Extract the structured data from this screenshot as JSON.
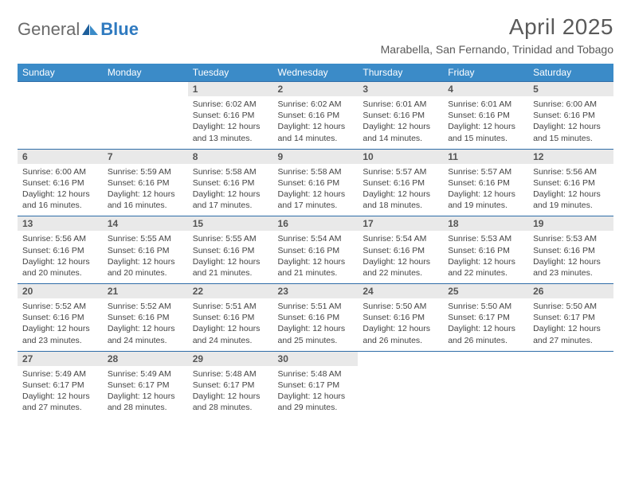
{
  "brand": {
    "part1": "General",
    "part2": "Blue"
  },
  "title": "April 2025",
  "location": "Marabella, San Fernando, Trinidad and Tobago",
  "colors": {
    "header_bg": "#3b8bc8",
    "header_text": "#ffffff",
    "daynum_bg": "#e9e9e9",
    "border_top": "#2f6da8",
    "body_text": "#444444",
    "title_text": "#5a5a5a",
    "logo_gray": "#6a6a6a",
    "logo_blue": "#2f7ac0"
  },
  "weekdays": [
    "Sunday",
    "Monday",
    "Tuesday",
    "Wednesday",
    "Thursday",
    "Friday",
    "Saturday"
  ],
  "weeks": [
    {
      "nums": [
        "",
        "",
        "1",
        "2",
        "3",
        "4",
        "5"
      ],
      "info": [
        null,
        null,
        {
          "sunrise": "Sunrise: 6:02 AM",
          "sunset": "Sunset: 6:16 PM",
          "day1": "Daylight: 12 hours",
          "day2": "and 13 minutes."
        },
        {
          "sunrise": "Sunrise: 6:02 AM",
          "sunset": "Sunset: 6:16 PM",
          "day1": "Daylight: 12 hours",
          "day2": "and 14 minutes."
        },
        {
          "sunrise": "Sunrise: 6:01 AM",
          "sunset": "Sunset: 6:16 PM",
          "day1": "Daylight: 12 hours",
          "day2": "and 14 minutes."
        },
        {
          "sunrise": "Sunrise: 6:01 AM",
          "sunset": "Sunset: 6:16 PM",
          "day1": "Daylight: 12 hours",
          "day2": "and 15 minutes."
        },
        {
          "sunrise": "Sunrise: 6:00 AM",
          "sunset": "Sunset: 6:16 PM",
          "day1": "Daylight: 12 hours",
          "day2": "and 15 minutes."
        }
      ]
    },
    {
      "nums": [
        "6",
        "7",
        "8",
        "9",
        "10",
        "11",
        "12"
      ],
      "info": [
        {
          "sunrise": "Sunrise: 6:00 AM",
          "sunset": "Sunset: 6:16 PM",
          "day1": "Daylight: 12 hours",
          "day2": "and 16 minutes."
        },
        {
          "sunrise": "Sunrise: 5:59 AM",
          "sunset": "Sunset: 6:16 PM",
          "day1": "Daylight: 12 hours",
          "day2": "and 16 minutes."
        },
        {
          "sunrise": "Sunrise: 5:58 AM",
          "sunset": "Sunset: 6:16 PM",
          "day1": "Daylight: 12 hours",
          "day2": "and 17 minutes."
        },
        {
          "sunrise": "Sunrise: 5:58 AM",
          "sunset": "Sunset: 6:16 PM",
          "day1": "Daylight: 12 hours",
          "day2": "and 17 minutes."
        },
        {
          "sunrise": "Sunrise: 5:57 AM",
          "sunset": "Sunset: 6:16 PM",
          "day1": "Daylight: 12 hours",
          "day2": "and 18 minutes."
        },
        {
          "sunrise": "Sunrise: 5:57 AM",
          "sunset": "Sunset: 6:16 PM",
          "day1": "Daylight: 12 hours",
          "day2": "and 19 minutes."
        },
        {
          "sunrise": "Sunrise: 5:56 AM",
          "sunset": "Sunset: 6:16 PM",
          "day1": "Daylight: 12 hours",
          "day2": "and 19 minutes."
        }
      ]
    },
    {
      "nums": [
        "13",
        "14",
        "15",
        "16",
        "17",
        "18",
        "19"
      ],
      "info": [
        {
          "sunrise": "Sunrise: 5:56 AM",
          "sunset": "Sunset: 6:16 PM",
          "day1": "Daylight: 12 hours",
          "day2": "and 20 minutes."
        },
        {
          "sunrise": "Sunrise: 5:55 AM",
          "sunset": "Sunset: 6:16 PM",
          "day1": "Daylight: 12 hours",
          "day2": "and 20 minutes."
        },
        {
          "sunrise": "Sunrise: 5:55 AM",
          "sunset": "Sunset: 6:16 PM",
          "day1": "Daylight: 12 hours",
          "day2": "and 21 minutes."
        },
        {
          "sunrise": "Sunrise: 5:54 AM",
          "sunset": "Sunset: 6:16 PM",
          "day1": "Daylight: 12 hours",
          "day2": "and 21 minutes."
        },
        {
          "sunrise": "Sunrise: 5:54 AM",
          "sunset": "Sunset: 6:16 PM",
          "day1": "Daylight: 12 hours",
          "day2": "and 22 minutes."
        },
        {
          "sunrise": "Sunrise: 5:53 AM",
          "sunset": "Sunset: 6:16 PM",
          "day1": "Daylight: 12 hours",
          "day2": "and 22 minutes."
        },
        {
          "sunrise": "Sunrise: 5:53 AM",
          "sunset": "Sunset: 6:16 PM",
          "day1": "Daylight: 12 hours",
          "day2": "and 23 minutes."
        }
      ]
    },
    {
      "nums": [
        "20",
        "21",
        "22",
        "23",
        "24",
        "25",
        "26"
      ],
      "info": [
        {
          "sunrise": "Sunrise: 5:52 AM",
          "sunset": "Sunset: 6:16 PM",
          "day1": "Daylight: 12 hours",
          "day2": "and 23 minutes."
        },
        {
          "sunrise": "Sunrise: 5:52 AM",
          "sunset": "Sunset: 6:16 PM",
          "day1": "Daylight: 12 hours",
          "day2": "and 24 minutes."
        },
        {
          "sunrise": "Sunrise: 5:51 AM",
          "sunset": "Sunset: 6:16 PM",
          "day1": "Daylight: 12 hours",
          "day2": "and 24 minutes."
        },
        {
          "sunrise": "Sunrise: 5:51 AM",
          "sunset": "Sunset: 6:16 PM",
          "day1": "Daylight: 12 hours",
          "day2": "and 25 minutes."
        },
        {
          "sunrise": "Sunrise: 5:50 AM",
          "sunset": "Sunset: 6:16 PM",
          "day1": "Daylight: 12 hours",
          "day2": "and 26 minutes."
        },
        {
          "sunrise": "Sunrise: 5:50 AM",
          "sunset": "Sunset: 6:17 PM",
          "day1": "Daylight: 12 hours",
          "day2": "and 26 minutes."
        },
        {
          "sunrise": "Sunrise: 5:50 AM",
          "sunset": "Sunset: 6:17 PM",
          "day1": "Daylight: 12 hours",
          "day2": "and 27 minutes."
        }
      ]
    },
    {
      "nums": [
        "27",
        "28",
        "29",
        "30",
        "",
        "",
        ""
      ],
      "info": [
        {
          "sunrise": "Sunrise: 5:49 AM",
          "sunset": "Sunset: 6:17 PM",
          "day1": "Daylight: 12 hours",
          "day2": "and 27 minutes."
        },
        {
          "sunrise": "Sunrise: 5:49 AM",
          "sunset": "Sunset: 6:17 PM",
          "day1": "Daylight: 12 hours",
          "day2": "and 28 minutes."
        },
        {
          "sunrise": "Sunrise: 5:48 AM",
          "sunset": "Sunset: 6:17 PM",
          "day1": "Daylight: 12 hours",
          "day2": "and 28 minutes."
        },
        {
          "sunrise": "Sunrise: 5:48 AM",
          "sunset": "Sunset: 6:17 PM",
          "day1": "Daylight: 12 hours",
          "day2": "and 29 minutes."
        },
        null,
        null,
        null
      ]
    }
  ]
}
